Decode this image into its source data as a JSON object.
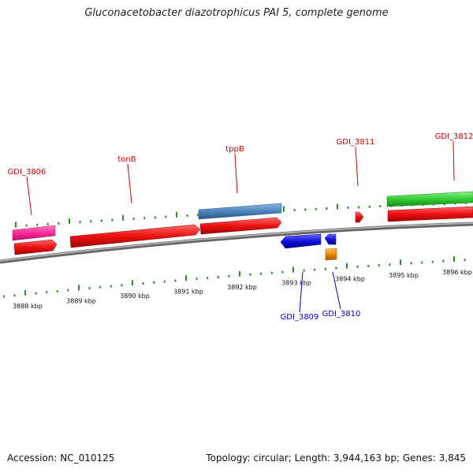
{
  "title": "Gluconacetobacter diazotrophicus PAI 5, complete genome",
  "footer": {
    "accession_text": "Accession: NC_010125",
    "summary_text": "Topology: circular; Length: 3,944,163 bp; Genes: 3,845"
  },
  "colors": {
    "backbone": "#888888",
    "tick": "#2a8a2a",
    "label_forward": "#cc0000",
    "label_reverse": "#0000cc",
    "gene_red": "#ee1111",
    "gene_pink": "#ff2a9a",
    "gene_steelblue": "#4a86c0",
    "gene_green": "#33cc33",
    "gene_blue": "#1111dd",
    "gene_orange": "#ee8800"
  },
  "scale": {
    "unit": "kbp",
    "labels": [
      "3888 kbp",
      "3889 kbp",
      "3890 kbp",
      "3891 kbp",
      "3892 kbp",
      "3893 kbp",
      "3894 kbp",
      "3895 kbp",
      "3896 kbp"
    ]
  },
  "genes": [
    {
      "label": "GDI_3806",
      "strand": "+"
    },
    {
      "label": "tonB",
      "strand": "+"
    },
    {
      "label": "tppB",
      "strand": "+"
    },
    {
      "label": "GDI_3809",
      "strand": "-"
    },
    {
      "label": "GDI_3810",
      "strand": "-"
    },
    {
      "label": "GDI_3811",
      "strand": "+"
    },
    {
      "label": "GDI_3812",
      "strand": "+"
    }
  ]
}
